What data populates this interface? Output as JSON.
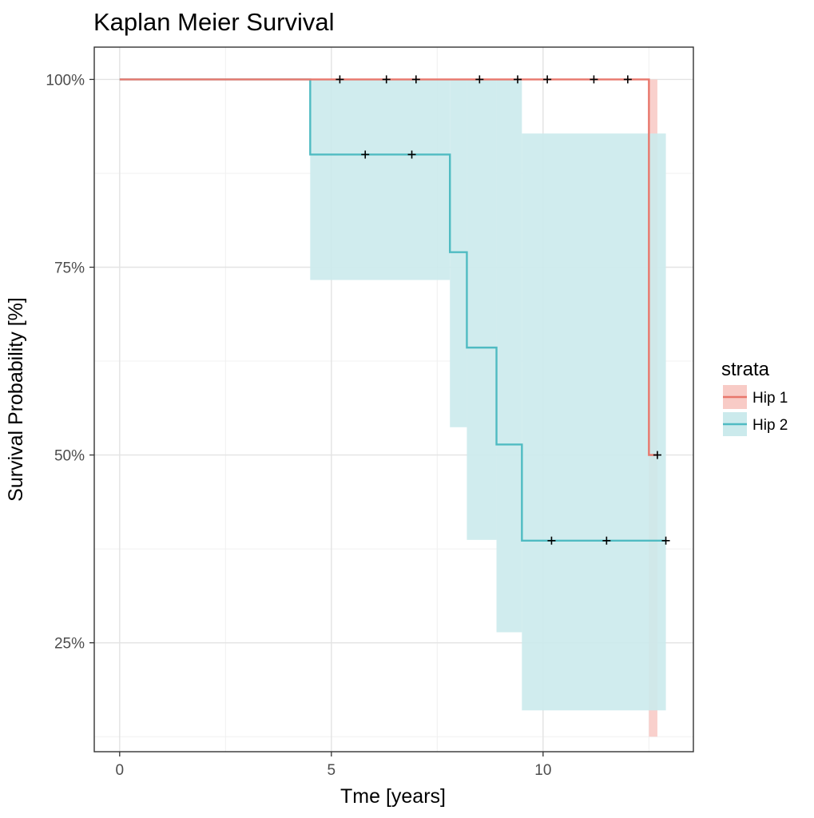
{
  "chart_data": {
    "type": "line",
    "title": "Kaplan Meier Survival",
    "xlabel": "Tme [years]",
    "ylabel": "Survival Probability [%]",
    "xlim": [
      -0.6,
      13.55
    ],
    "ylim": [
      0.105,
      1.043
    ],
    "x_ticks": [
      0,
      5,
      10
    ],
    "x_tick_labels": [
      "0",
      "5",
      "10"
    ],
    "y_ticks": [
      0.25,
      0.5,
      0.75,
      1.0
    ],
    "y_tick_labels": [
      "25%",
      "50%",
      "75%",
      "100%"
    ],
    "grid": true,
    "legend_title": "strata",
    "legend_position": "right",
    "series": [
      {
        "name": "Hip 1",
        "color": "#e8776c",
        "fill_color": "#f8cbc6",
        "step_x": [
          0,
          12.5,
          12.5
        ],
        "step_y": [
          1.0,
          1.0,
          0.5
        ],
        "end_x": 12.7,
        "ci": [
          {
            "x0": 0,
            "x1": 12.5,
            "lower": 1.0,
            "upper": 1.0
          },
          {
            "x0": 12.5,
            "x1": 12.7,
            "lower": 0.125,
            "upper": 1.0
          }
        ],
        "censor_x": [
          5.2,
          6.3,
          7.0,
          8.5,
          9.4,
          10.1,
          11.2,
          12.0,
          12.7
        ],
        "censor_y": [
          1.0,
          1.0,
          1.0,
          1.0,
          1.0,
          1.0,
          1.0,
          1.0,
          0.5
        ]
      },
      {
        "name": "Hip 2",
        "color": "#4fbbc2",
        "fill_color": "#cbeaec",
        "step_x": [
          0,
          4.5,
          7.8,
          8.2,
          8.9,
          9.5
        ],
        "step_y": [
          1.0,
          0.9,
          0.77,
          0.643,
          0.514,
          0.386
        ],
        "end_x": 12.9,
        "ci": [
          {
            "x0": 0,
            "x1": 4.5,
            "lower": 1.0,
            "upper": 1.0
          },
          {
            "x0": 4.5,
            "x1": 7.8,
            "lower": 0.733,
            "upper": 1.0
          },
          {
            "x0": 7.8,
            "x1": 8.2,
            "lower": 0.537,
            "upper": 1.0
          },
          {
            "x0": 8.2,
            "x1": 8.9,
            "lower": 0.387,
            "upper": 1.0
          },
          {
            "x0": 8.9,
            "x1": 9.5,
            "lower": 0.264,
            "upper": 1.0
          },
          {
            "x0": 9.5,
            "x1": 12.9,
            "lower": 0.16,
            "upper": 0.928
          }
        ],
        "censor_x": [
          5.8,
          6.9,
          10.2,
          11.5,
          12.9
        ],
        "censor_y": [
          0.9,
          0.9,
          0.386,
          0.386,
          0.386
        ]
      }
    ]
  }
}
